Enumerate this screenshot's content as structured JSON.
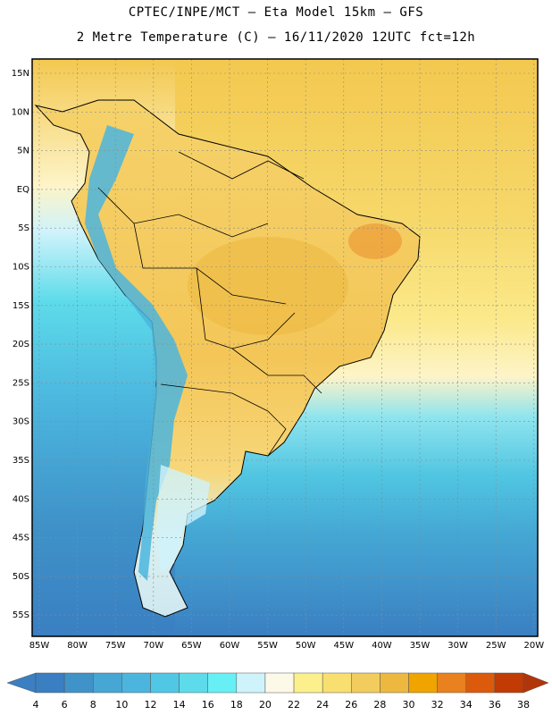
{
  "title_line1": "CPTEC/INPE/MCT –  Eta Model 15km – GFS",
  "title_line2": "2 Metre Temperature (C) – 16/11/2020 12UTC fct=12h",
  "map": {
    "lat_labels": [
      "15N",
      "10N",
      "5N",
      "EQ",
      "5S",
      "10S",
      "15S",
      "20S",
      "25S",
      "30S",
      "35S",
      "40S",
      "45S",
      "50S",
      "55S"
    ],
    "lon_labels": [
      "85W",
      "80W",
      "75W",
      "70W",
      "65W",
      "60W",
      "55W",
      "50W",
      "45W",
      "40W",
      "35W",
      "30W",
      "25W",
      "20W"
    ],
    "gridlines": "dotted"
  },
  "colorbar": {
    "labels": [
      "4",
      "6",
      "8",
      "10",
      "12",
      "14",
      "16",
      "18",
      "20",
      "22",
      "24",
      "26",
      "28",
      "30",
      "32",
      "34",
      "36",
      "38"
    ],
    "colors": [
      "#3a7fc2",
      "#3a7fc2",
      "#3f93c9",
      "#46a6d4",
      "#4bb5de",
      "#50c7e5",
      "#5ddbea",
      "#66f0f5",
      "#cff3fb",
      "#fdf9e8",
      "#fcf08c",
      "#f8df70",
      "#f2cc5c",
      "#edb83f",
      "#efa400",
      "#e8811e",
      "#dc5a0c",
      "#c23a04",
      "#b13508"
    ]
  }
}
